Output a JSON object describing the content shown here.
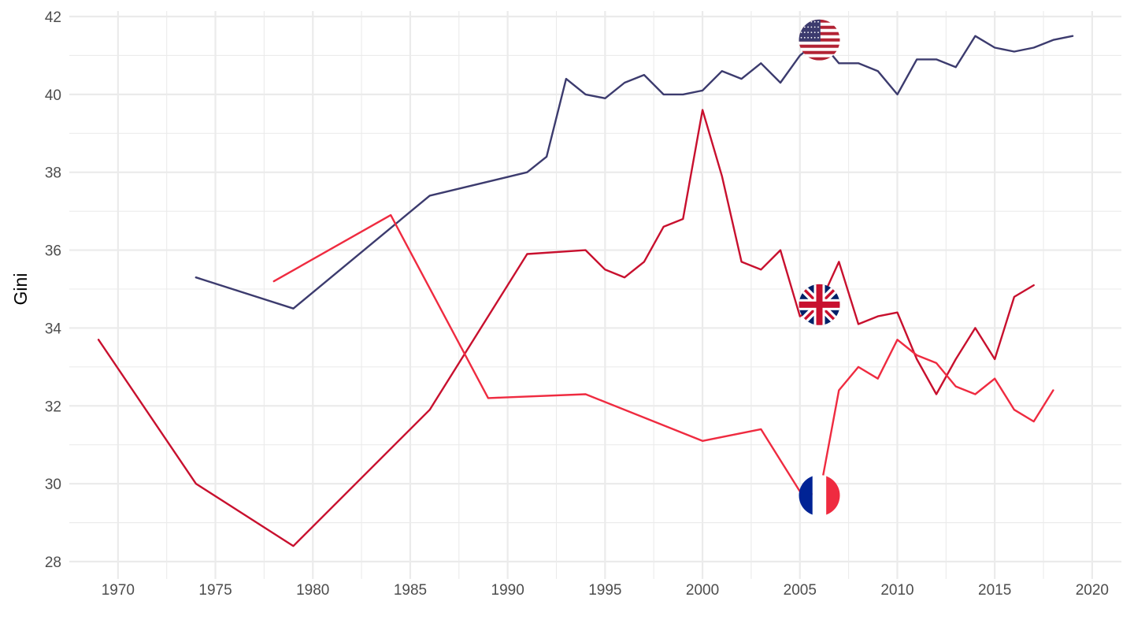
{
  "chart_data": {
    "type": "line",
    "title": "",
    "xlabel": "",
    "ylabel": "Gini",
    "xlim": [
      1967.5,
      2021.5
    ],
    "ylim": [
      28,
      42
    ],
    "x_ticks": [
      1970,
      1975,
      1980,
      1985,
      1990,
      1995,
      2000,
      2005,
      2010,
      2015,
      2020
    ],
    "y_ticks": [
      28,
      30,
      32,
      34,
      36,
      38,
      40,
      42
    ],
    "grid": true,
    "legend": "none",
    "colors": {
      "usa": "#3c3b6e",
      "uk": "#c8102e",
      "france": "#ef2b40",
      "grid": "#ebebeb"
    },
    "series": [
      {
        "key": "usa",
        "flag_icon": "us-flag-icon",
        "flag_x": 2006,
        "flag_y": 41.4,
        "points": [
          [
            1974,
            35.3
          ],
          [
            1979,
            34.5
          ],
          [
            1986,
            37.4
          ],
          [
            1991,
            38.0
          ],
          [
            1992,
            38.4
          ],
          [
            1993,
            40.4
          ],
          [
            1994,
            40.0
          ],
          [
            1995,
            39.9
          ],
          [
            1996,
            40.3
          ],
          [
            1997,
            40.5
          ],
          [
            1998,
            40.0
          ],
          [
            1999,
            40.0
          ],
          [
            2000,
            40.1
          ],
          [
            2001,
            40.6
          ],
          [
            2002,
            40.4
          ],
          [
            2003,
            40.8
          ],
          [
            2004,
            40.3
          ],
          [
            2005,
            41.0
          ],
          [
            2006,
            41.4
          ],
          [
            2007,
            40.8
          ],
          [
            2008,
            40.8
          ],
          [
            2009,
            40.6
          ],
          [
            2010,
            40.0
          ],
          [
            2011,
            40.9
          ],
          [
            2012,
            40.9
          ],
          [
            2013,
            40.7
          ],
          [
            2014,
            41.5
          ],
          [
            2015,
            41.2
          ],
          [
            2016,
            41.1
          ],
          [
            2017,
            41.2
          ],
          [
            2018,
            41.4
          ],
          [
            2019,
            41.5
          ]
        ]
      },
      {
        "key": "uk",
        "flag_icon": "uk-flag-icon",
        "flag_x": 2006,
        "flag_y": 34.6,
        "points": [
          [
            1969,
            33.7
          ],
          [
            1974,
            30.0
          ],
          [
            1979,
            28.4
          ],
          [
            1986,
            31.9
          ],
          [
            1991,
            35.9
          ],
          [
            1994,
            36.0
          ],
          [
            1995,
            35.5
          ],
          [
            1996,
            35.3
          ],
          [
            1997,
            35.7
          ],
          [
            1998,
            36.6
          ],
          [
            1999,
            36.8
          ],
          [
            2000,
            39.6
          ],
          [
            2001,
            37.9
          ],
          [
            2002,
            35.7
          ],
          [
            2003,
            35.5
          ],
          [
            2004,
            36.0
          ],
          [
            2005,
            34.3
          ],
          [
            2006,
            34.6
          ],
          [
            2007,
            35.7
          ],
          [
            2008,
            34.1
          ],
          [
            2009,
            34.3
          ],
          [
            2010,
            34.4
          ],
          [
            2011,
            33.2
          ],
          [
            2012,
            32.3
          ],
          [
            2013,
            33.2
          ],
          [
            2014,
            34.0
          ],
          [
            2015,
            33.2
          ],
          [
            2016,
            34.8
          ],
          [
            2017,
            35.1
          ]
        ]
      },
      {
        "key": "france",
        "flag_icon": "france-flag-icon",
        "flag_x": 2006,
        "flag_y": 29.7,
        "points": [
          [
            1978,
            35.2
          ],
          [
            1984,
            36.9
          ],
          [
            1989,
            32.2
          ],
          [
            1994,
            32.3
          ],
          [
            2000,
            31.1
          ],
          [
            2003,
            31.4
          ],
          [
            2005,
            29.8
          ],
          [
            2006,
            29.7
          ],
          [
            2007,
            32.4
          ],
          [
            2008,
            33.0
          ],
          [
            2009,
            32.7
          ],
          [
            2010,
            33.7
          ],
          [
            2011,
            33.3
          ],
          [
            2012,
            33.1
          ],
          [
            2013,
            32.5
          ],
          [
            2014,
            32.3
          ],
          [
            2015,
            32.7
          ],
          [
            2016,
            31.9
          ],
          [
            2017,
            31.6
          ],
          [
            2018,
            32.4
          ]
        ]
      }
    ]
  }
}
